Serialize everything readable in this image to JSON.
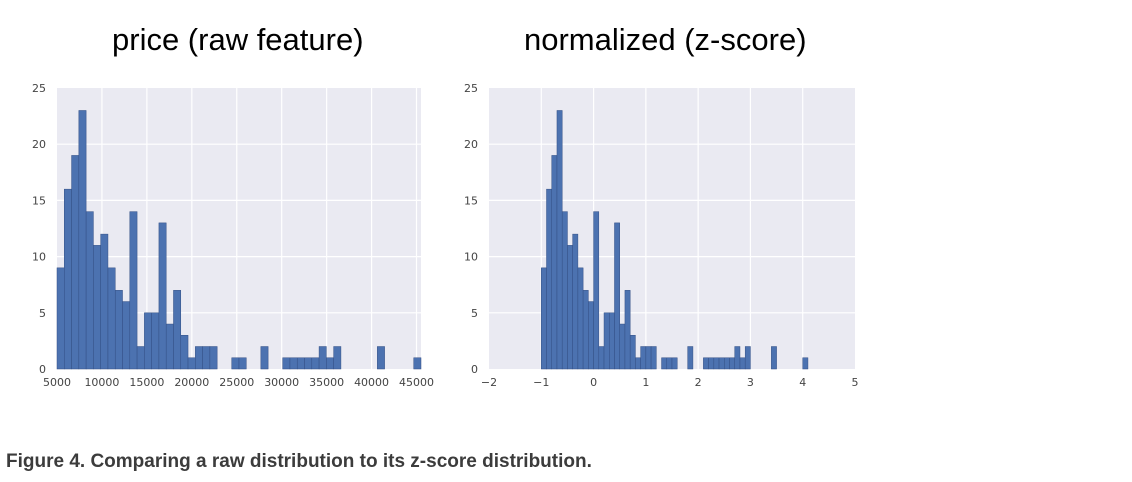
{
  "caption": "Figure 4. Comparing a raw distribution to its z-score distribution.",
  "colors": {
    "bar": "#4c72b0",
    "bar_edge": "#324f85",
    "plot_bg": "#eaeaf2",
    "grid": "#ffffff",
    "tick_text": "#444444"
  },
  "chart_data": [
    {
      "type": "bar",
      "title": "price (raw feature)",
      "xlabel": "",
      "ylabel": "",
      "xlim": [
        5000,
        45500
      ],
      "ylim": [
        0,
        25
      ],
      "xticks": [
        5000,
        10000,
        15000,
        20000,
        25000,
        30000,
        35000,
        40000,
        45000
      ],
      "yticks": [
        0,
        5,
        10,
        15,
        20,
        25
      ],
      "grid": true,
      "bin_width": 810,
      "bins": [
        {
          "x": 5000,
          "count": 9
        },
        {
          "x": 5810,
          "count": 16
        },
        {
          "x": 6620,
          "count": 19
        },
        {
          "x": 7430,
          "count": 23
        },
        {
          "x": 8240,
          "count": 14
        },
        {
          "x": 9050,
          "count": 11
        },
        {
          "x": 9860,
          "count": 12
        },
        {
          "x": 10670,
          "count": 9
        },
        {
          "x": 11480,
          "count": 7
        },
        {
          "x": 12290,
          "count": 6
        },
        {
          "x": 13100,
          "count": 14
        },
        {
          "x": 13910,
          "count": 2
        },
        {
          "x": 14720,
          "count": 5
        },
        {
          "x": 15530,
          "count": 5
        },
        {
          "x": 16340,
          "count": 13
        },
        {
          "x": 17150,
          "count": 4
        },
        {
          "x": 17960,
          "count": 7
        },
        {
          "x": 18770,
          "count": 3
        },
        {
          "x": 19580,
          "count": 1
        },
        {
          "x": 20390,
          "count": 2
        },
        {
          "x": 21200,
          "count": 2
        },
        {
          "x": 22010,
          "count": 2
        },
        {
          "x": 24440,
          "count": 1
        },
        {
          "x": 25250,
          "count": 1
        },
        {
          "x": 27680,
          "count": 2
        },
        {
          "x": 30110,
          "count": 1
        },
        {
          "x": 30920,
          "count": 1
        },
        {
          "x": 31730,
          "count": 1
        },
        {
          "x": 32540,
          "count": 1
        },
        {
          "x": 33350,
          "count": 1
        },
        {
          "x": 34160,
          "count": 2
        },
        {
          "x": 34970,
          "count": 1
        },
        {
          "x": 35780,
          "count": 2
        },
        {
          "x": 40640,
          "count": 2
        },
        {
          "x": 44690,
          "count": 1
        }
      ]
    },
    {
      "type": "bar",
      "title": "normalized (z-score)",
      "xlabel": "",
      "ylabel": "",
      "xlim": [
        -2,
        5
      ],
      "ylim": [
        0,
        25
      ],
      "xticks": [
        -2,
        -1,
        0,
        1,
        2,
        3,
        4,
        5
      ],
      "yticks": [
        0,
        5,
        10,
        15,
        20,
        25
      ],
      "grid": true,
      "bin_width": 0.1,
      "bins": [
        {
          "x": -1.0,
          "count": 9
        },
        {
          "x": -0.9,
          "count": 16
        },
        {
          "x": -0.8,
          "count": 19
        },
        {
          "x": -0.7,
          "count": 23
        },
        {
          "x": -0.6,
          "count": 14
        },
        {
          "x": -0.5,
          "count": 11
        },
        {
          "x": -0.4,
          "count": 12
        },
        {
          "x": -0.3,
          "count": 9
        },
        {
          "x": -0.2,
          "count": 7
        },
        {
          "x": -0.1,
          "count": 6
        },
        {
          "x": 0.0,
          "count": 14
        },
        {
          "x": 0.1,
          "count": 2
        },
        {
          "x": 0.2,
          "count": 5
        },
        {
          "x": 0.3,
          "count": 5
        },
        {
          "x": 0.4,
          "count": 13
        },
        {
          "x": 0.5,
          "count": 4
        },
        {
          "x": 0.6,
          "count": 7
        },
        {
          "x": 0.7,
          "count": 3
        },
        {
          "x": 0.8,
          "count": 1
        },
        {
          "x": 0.9,
          "count": 2
        },
        {
          "x": 1.0,
          "count": 2
        },
        {
          "x": 1.1,
          "count": 2
        },
        {
          "x": 1.3,
          "count": 1
        },
        {
          "x": 1.4,
          "count": 1
        },
        {
          "x": 1.5,
          "count": 1
        },
        {
          "x": 1.8,
          "count": 2
        },
        {
          "x": 2.1,
          "count": 1
        },
        {
          "x": 2.2,
          "count": 1
        },
        {
          "x": 2.3,
          "count": 1
        },
        {
          "x": 2.4,
          "count": 1
        },
        {
          "x": 2.5,
          "count": 1
        },
        {
          "x": 2.6,
          "count": 1
        },
        {
          "x": 2.7,
          "count": 2
        },
        {
          "x": 2.8,
          "count": 1
        },
        {
          "x": 2.9,
          "count": 2
        },
        {
          "x": 3.4,
          "count": 2
        },
        {
          "x": 4.0,
          "count": 1
        }
      ]
    }
  ]
}
